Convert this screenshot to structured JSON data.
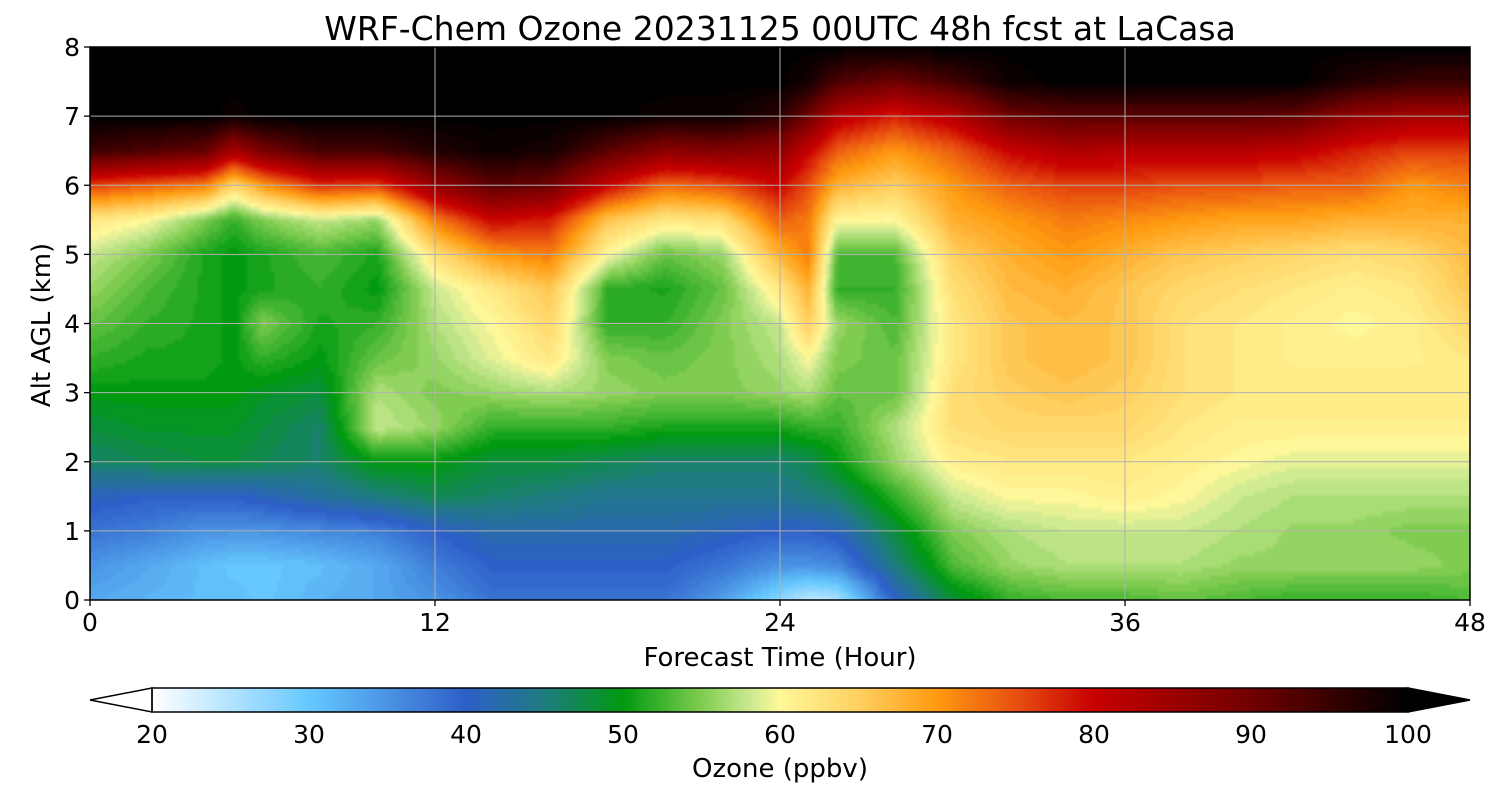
{
  "chart_data": {
    "type": "heatmap",
    "title": "WRF-Chem Ozone  20231125 00UTC 48h fcst at LaCasa",
    "xlabel": "Forecast Time (Hour)",
    "ylabel": "Alt AGL (km)",
    "xlim": [
      0,
      48
    ],
    "ylim": [
      0,
      8
    ],
    "xticks": [
      "0",
      "12",
      "24",
      "36",
      "48"
    ],
    "yticks": [
      "0",
      "1",
      "2",
      "3",
      "4",
      "5",
      "6",
      "7",
      "8"
    ],
    "grid": true,
    "colorbar": {
      "label": "Ozone  (ppbv)",
      "range": [
        20,
        100
      ],
      "ticks": [
        "20",
        "30",
        "40",
        "50",
        "60",
        "70",
        "80",
        "90",
        "100"
      ],
      "extend": "both",
      "stops": [
        {
          "value": 20,
          "color": "#ffffff"
        },
        {
          "value": 30,
          "color": "#66c8ff"
        },
        {
          "value": 40,
          "color": "#2e5fc8"
        },
        {
          "value": 45,
          "color": "#1f7c80"
        },
        {
          "value": 50,
          "color": "#009a10"
        },
        {
          "value": 55,
          "color": "#80cc50"
        },
        {
          "value": 58,
          "color": "#c8e890"
        },
        {
          "value": 60,
          "color": "#fff89a"
        },
        {
          "value": 65,
          "color": "#ffd060"
        },
        {
          "value": 70,
          "color": "#ff9a10"
        },
        {
          "value": 75,
          "color": "#e85010"
        },
        {
          "value": 80,
          "color": "#c80000"
        },
        {
          "value": 90,
          "color": "#700000"
        },
        {
          "value": 100,
          "color": "#000000"
        }
      ]
    },
    "hours": [
      0,
      2,
      4,
      5,
      6,
      8,
      10,
      12,
      14,
      16,
      18,
      20,
      22,
      24,
      25,
      26,
      28,
      30,
      32,
      34,
      36,
      38,
      40,
      42,
      44,
      46,
      48
    ],
    "altitudes_km": [
      0,
      0.5,
      1,
      1.5,
      2,
      2.5,
      3,
      3.5,
      4,
      4.5,
      5,
      5.5,
      6,
      6.5,
      7,
      7.5,
      8
    ],
    "ozone_ppbv": [
      [
        33,
        32,
        31,
        31,
        30,
        32,
        33,
        35,
        38,
        38,
        38,
        38,
        34,
        27,
        24,
        25,
        40,
        48,
        52,
        53,
        53,
        54,
        53,
        52,
        52,
        52,
        53
      ],
      [
        35,
        33,
        31,
        30,
        30,
        31,
        33,
        37,
        40,
        40,
        40,
        40,
        38,
        35,
        35,
        36,
        45,
        53,
        56,
        57,
        57,
        57,
        56,
        56,
        56,
        56,
        55
      ],
      [
        38,
        37,
        35,
        35,
        35,
        36,
        37,
        40,
        42,
        42,
        42,
        42,
        41,
        40,
        40,
        41,
        48,
        55,
        57,
        58,
        58,
        58,
        57,
        56,
        56,
        55,
        55
      ],
      [
        41,
        40,
        40,
        40,
        41,
        43,
        45,
        47,
        46,
        45,
        44,
        44,
        44,
        44,
        45,
        46,
        52,
        58,
        60,
        60,
        61,
        60,
        58,
        57,
        57,
        57,
        57
      ],
      [
        46,
        47,
        48,
        48,
        47,
        46,
        50,
        50,
        48,
        48,
        47,
        46,
        46,
        46,
        47,
        50,
        56,
        61,
        62,
        62,
        62,
        61,
        60,
        59,
        59,
        59,
        59
      ],
      [
        48,
        49,
        49,
        49,
        48,
        46,
        58,
        56,
        52,
        52,
        52,
        51,
        51,
        51,
        52,
        52,
        57,
        63,
        64,
        64,
        64,
        62,
        61,
        61,
        61,
        61,
        61
      ],
      [
        50,
        50,
        50,
        50,
        49,
        48,
        57,
        55,
        56,
        57,
        56,
        55,
        55,
        56,
        57,
        54,
        54,
        63,
        65,
        66,
        65,
        63,
        62,
        62,
        62,
        62,
        62
      ],
      [
        52,
        51,
        51,
        50,
        52,
        50,
        54,
        56,
        59,
        62,
        55,
        54,
        55,
        57,
        60,
        55,
        54,
        62,
        66,
        67,
        66,
        63,
        62,
        61,
        61,
        61,
        62
      ],
      [
        54,
        52,
        51,
        50,
        55,
        51,
        52,
        57,
        60,
        64,
        52,
        52,
        55,
        58,
        65,
        56,
        53,
        62,
        66,
        67,
        66,
        63,
        62,
        61,
        60,
        61,
        64
      ],
      [
        56,
        53,
        51,
        50,
        51,
        52,
        50,
        58,
        62,
        66,
        52,
        51,
        54,
        62,
        68,
        52,
        52,
        63,
        67,
        68,
        66,
        64,
        63,
        62,
        61,
        62,
        66
      ],
      [
        58,
        55,
        51,
        50,
        51,
        53,
        51,
        63,
        70,
        72,
        60,
        54,
        56,
        68,
        72,
        53,
        53,
        65,
        68,
        70,
        68,
        66,
        65,
        64,
        63,
        64,
        67
      ],
      [
        62,
        60,
        55,
        52,
        55,
        58,
        56,
        72,
        80,
        78,
        66,
        62,
        63,
        74,
        72,
        60,
        60,
        68,
        70,
        72,
        71,
        70,
        69,
        69,
        68,
        68,
        68
      ],
      [
        76,
        74,
        72,
        64,
        70,
        77,
        76,
        86,
        92,
        90,
        80,
        73,
        75,
        80,
        75,
        68,
        65,
        70,
        74,
        76,
        76,
        75,
        75,
        74,
        74,
        70,
        72
      ],
      [
        95,
        93,
        91,
        84,
        89,
        94,
        94,
        97,
        99,
        98,
        92,
        87,
        88,
        86,
        80,
        74,
        70,
        74,
        80,
        83,
        82,
        82,
        82,
        81,
        78,
        76,
        76
      ],
      [
        100,
        100,
        100,
        99,
        100,
        100,
        100,
        100,
        100,
        100,
        100,
        99,
        99,
        96,
        90,
        82,
        78,
        82,
        90,
        92,
        92,
        92,
        92,
        91,
        86,
        84,
        84
      ],
      [
        100,
        100,
        100,
        100,
        100,
        100,
        100,
        100,
        100,
        100,
        100,
        100,
        100,
        100,
        98,
        93,
        90,
        94,
        99,
        100,
        100,
        100,
        100,
        100,
        97,
        95,
        95
      ],
      [
        100,
        100,
        100,
        100,
        100,
        100,
        100,
        100,
        100,
        100,
        100,
        100,
        100,
        100,
        100,
        100,
        100,
        100,
        100,
        100,
        100,
        100,
        100,
        100,
        100,
        100,
        100
      ]
    ]
  }
}
